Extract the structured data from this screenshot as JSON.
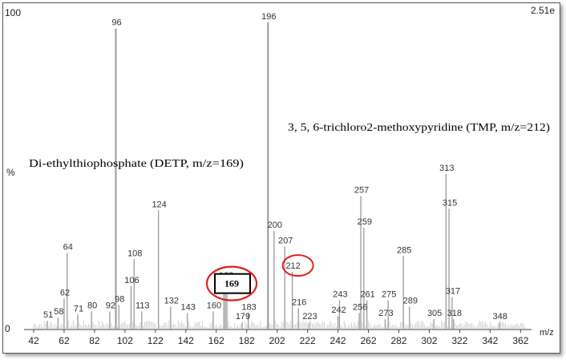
{
  "chart_data": {
    "type": "bar",
    "title": "",
    "xlabel": "m/z",
    "ylabel": "%",
    "xlim": [
      42,
      365
    ],
    "ylim": [
      0,
      100
    ],
    "max_intensity_label": "2.51e",
    "x_ticks": [
      42,
      62,
      82,
      102,
      122,
      142,
      162,
      182,
      202,
      222,
      242,
      262,
      282,
      302,
      322,
      342,
      362
    ],
    "y_ticks": [
      0,
      100
    ],
    "peaks": [
      {
        "mz": 51,
        "intensity": 2.5,
        "label": "51"
      },
      {
        "mz": 58,
        "intensity": 3.5,
        "label": "58"
      },
      {
        "mz": 62,
        "intensity": 9.5,
        "label": "62"
      },
      {
        "mz": 64,
        "intensity": 24,
        "label": "64"
      },
      {
        "mz": 71,
        "intensity": 4.5,
        "label": "71"
      },
      {
        "mz": 80,
        "intensity": 5.5,
        "label": "80"
      },
      {
        "mz": 92,
        "intensity": 5.5,
        "label": "92"
      },
      {
        "mz": 96,
        "intensity": 95,
        "label": "96"
      },
      {
        "mz": 98,
        "intensity": 7.5,
        "label": "98"
      },
      {
        "mz": 106,
        "intensity": 13.5,
        "label": "106"
      },
      {
        "mz": 108,
        "intensity": 22,
        "label": "108"
      },
      {
        "mz": 113,
        "intensity": 5.5,
        "label": "113"
      },
      {
        "mz": 124,
        "intensity": 37.5,
        "label": "124"
      },
      {
        "mz": 132,
        "intensity": 7,
        "label": "132"
      },
      {
        "mz": 143,
        "intensity": 5,
        "label": "143"
      },
      {
        "mz": 160,
        "intensity": 5.5,
        "label": "160"
      },
      {
        "mz": 167,
        "intensity": 11,
        "label": "167"
      },
      {
        "mz": 168,
        "intensity": 15,
        "label": "168"
      },
      {
        "mz": 169,
        "intensity": 11,
        "label": "169"
      },
      {
        "mz": 179,
        "intensity": 2,
        "label": "179"
      },
      {
        "mz": 183,
        "intensity": 5,
        "label": "183"
      },
      {
        "mz": 196,
        "intensity": 97,
        "label": "196"
      },
      {
        "mz": 200,
        "intensity": 31,
        "label": "200"
      },
      {
        "mz": 207,
        "intensity": 26,
        "label": "207"
      },
      {
        "mz": 212,
        "intensity": 18,
        "label": "212"
      },
      {
        "mz": 216,
        "intensity": 6.5,
        "label": "216"
      },
      {
        "mz": 223,
        "intensity": 2,
        "label": "223"
      },
      {
        "mz": 242,
        "intensity": 4,
        "label": "242"
      },
      {
        "mz": 243,
        "intensity": 9,
        "label": "243"
      },
      {
        "mz": 256,
        "intensity": 5,
        "label": "256"
      },
      {
        "mz": 257,
        "intensity": 42,
        "label": "257"
      },
      {
        "mz": 259,
        "intensity": 32,
        "label": "259"
      },
      {
        "mz": 261,
        "intensity": 9,
        "label": "261"
      },
      {
        "mz": 273,
        "intensity": 3,
        "label": "273"
      },
      {
        "mz": 275,
        "intensity": 9,
        "label": "275"
      },
      {
        "mz": 285,
        "intensity": 23,
        "label": "285"
      },
      {
        "mz": 289,
        "intensity": 7,
        "label": "289"
      },
      {
        "mz": 305,
        "intensity": 3,
        "label": "305"
      },
      {
        "mz": 313,
        "intensity": 49,
        "label": "313"
      },
      {
        "mz": 315,
        "intensity": 38,
        "label": "315"
      },
      {
        "mz": 317,
        "intensity": 10,
        "label": "317"
      },
      {
        "mz": 318,
        "intensity": 3,
        "label": "318"
      },
      {
        "mz": 348,
        "intensity": 2,
        "label": "348"
      }
    ],
    "annotations": [
      {
        "text": "3, 5, 6-trichloro2-methoxypyridine (TMP, m/z=212)"
      },
      {
        "text": "Di-ethylthiophosphate (DETP, m/z=169)"
      }
    ],
    "highlighted": [
      {
        "label": "212",
        "style": "red-ellipse"
      },
      {
        "label": "169",
        "style": "boxed-bold-in-red-ellipse"
      }
    ],
    "colors": {
      "peak": "#9a9a9a",
      "highlight": "#e02020",
      "axis": "#444444"
    }
  }
}
